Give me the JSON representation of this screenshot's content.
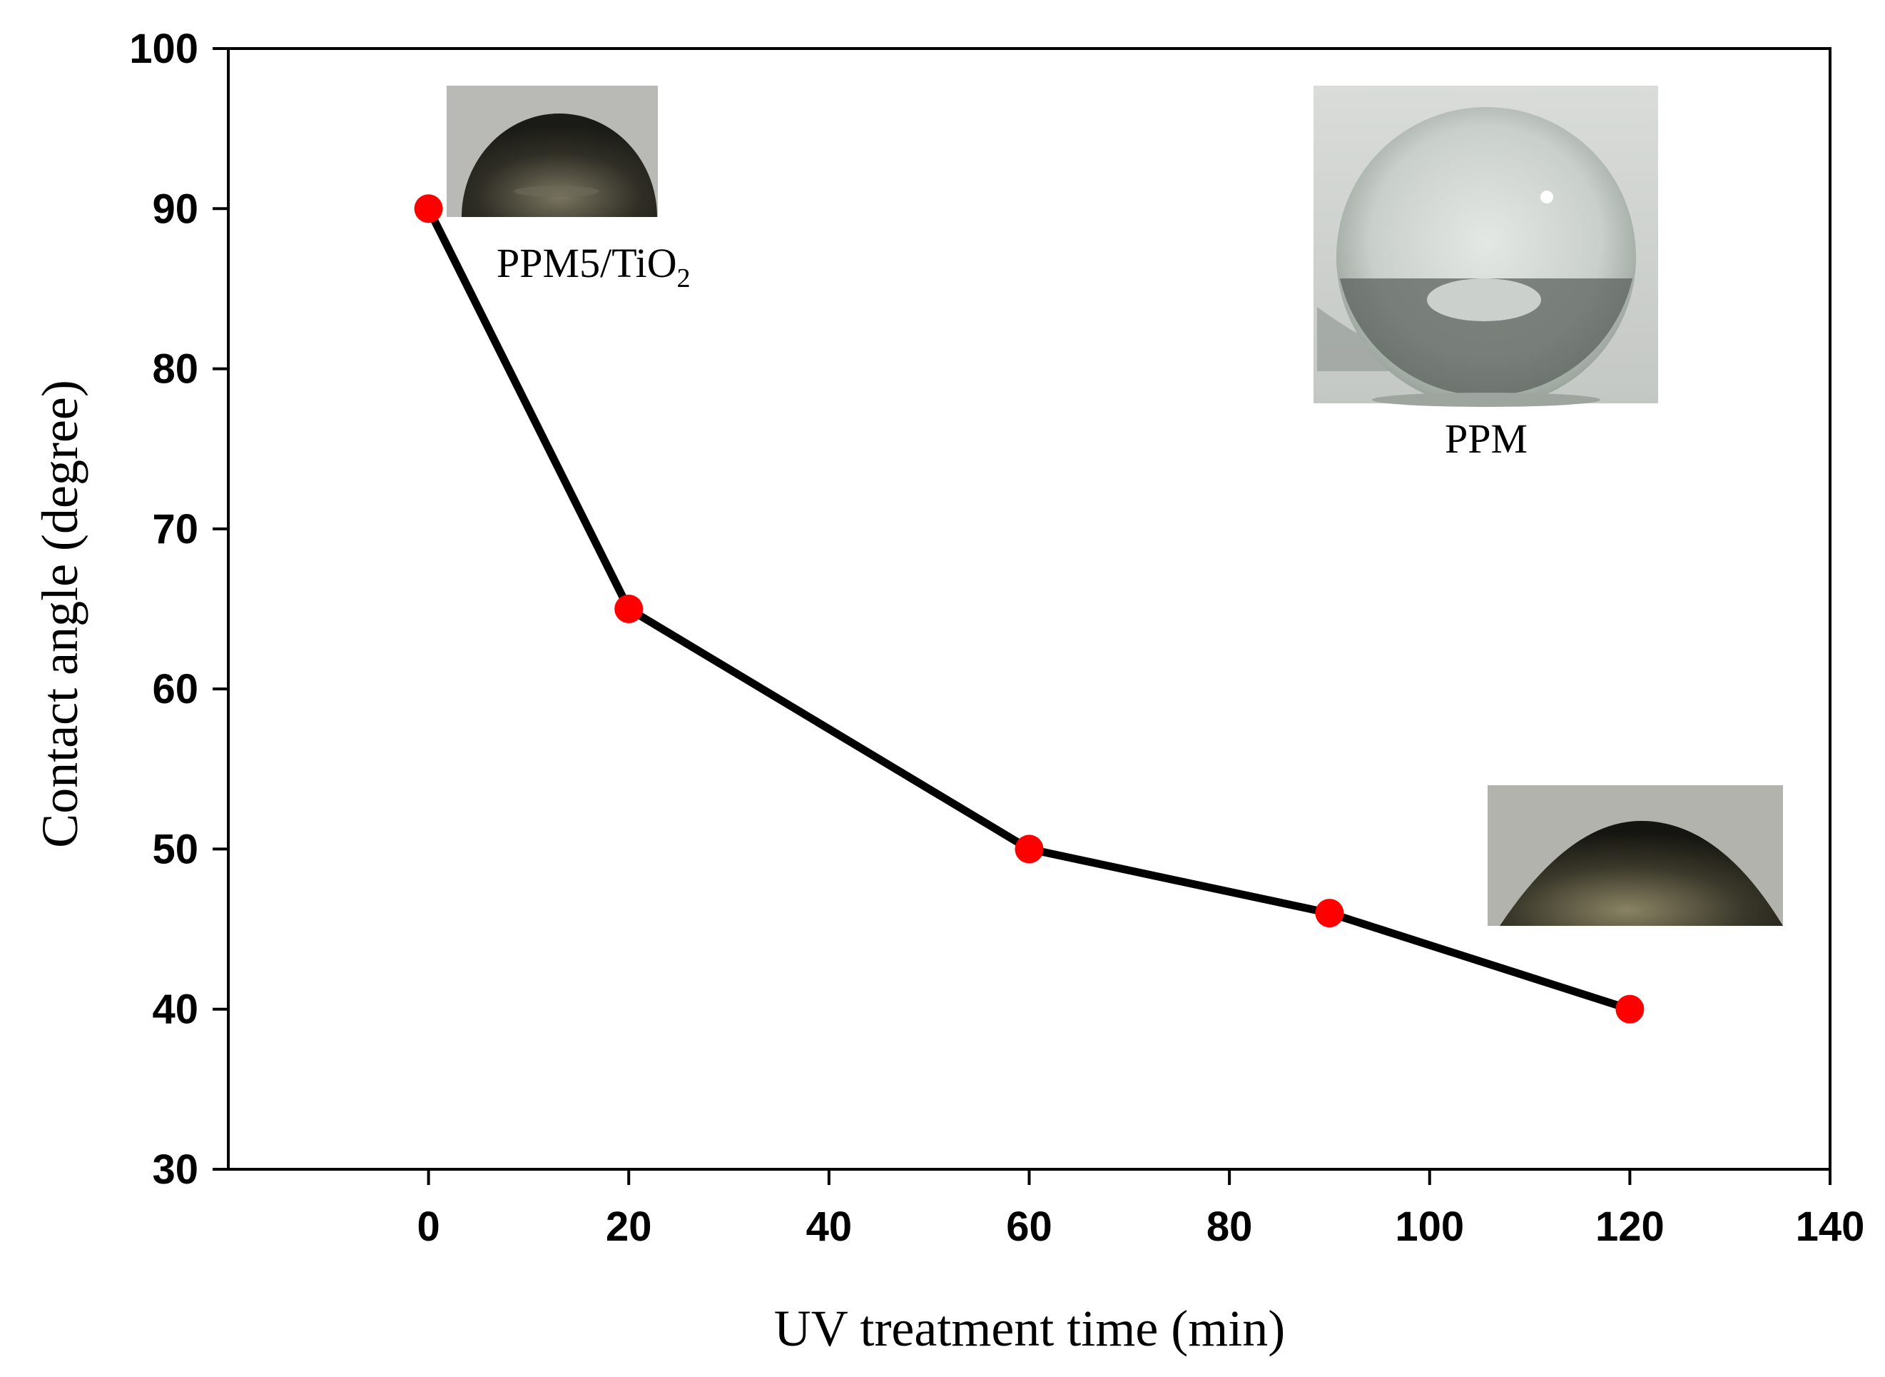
{
  "chart_data": {
    "type": "line",
    "xlabel": "UV treatment time (min)",
    "ylabel": "Contact angle (degree)",
    "xlim": [
      -20,
      140
    ],
    "ylim": [
      30,
      100
    ],
    "xticks": [
      0,
      20,
      40,
      60,
      80,
      100,
      120,
      140
    ],
    "yticks": [
      30,
      40,
      50,
      60,
      70,
      80,
      90,
      100
    ],
    "grid": false,
    "series": [
      {
        "x": [
          0,
          20,
          60,
          90,
          120
        ],
        "y": [
          90,
          65,
          50,
          46,
          40
        ],
        "line_color": "#000000",
        "marker_color": "#ff0000"
      }
    ],
    "annotations": [
      {
        "id": "ppm5-tio2",
        "label_main": "PPM5/TiO",
        "label_sub": "2"
      },
      {
        "id": "ppm",
        "label_main": "PPM",
        "label_sub": ""
      },
      {
        "id": "uv120",
        "label_main": "",
        "label_sub": ""
      }
    ]
  }
}
